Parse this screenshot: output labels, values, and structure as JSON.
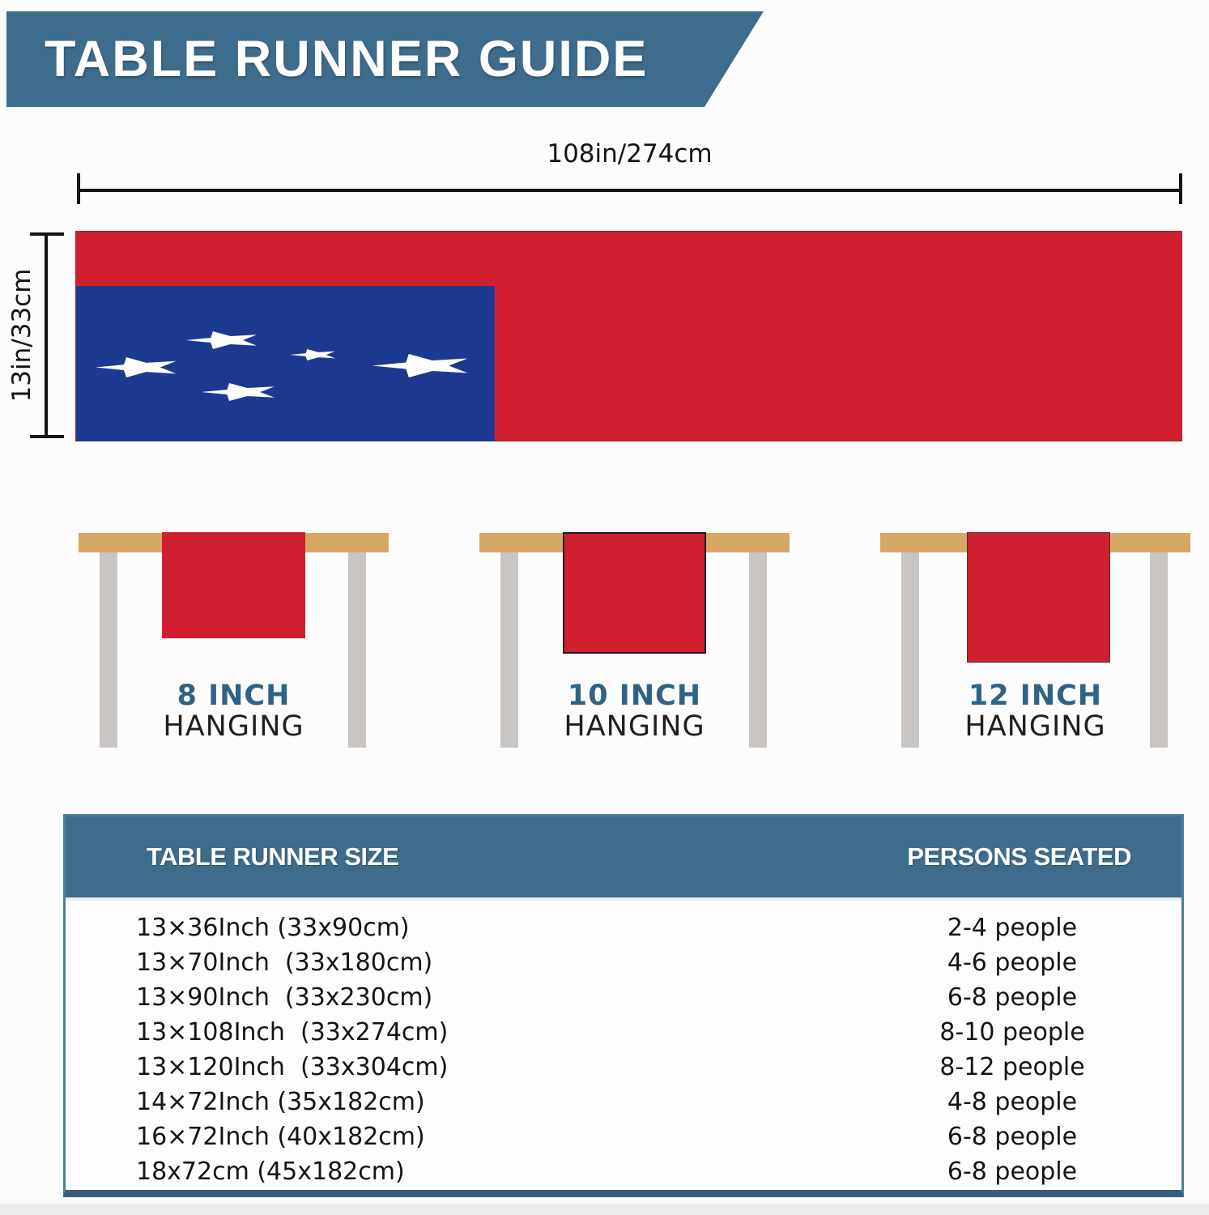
{
  "banner": {
    "title": "TABLE RUNNER GUIDE",
    "color": "#3d6c8c"
  },
  "dimensions": {
    "length": "108in/274cm",
    "width": "13in/33cm"
  },
  "runner": {
    "red": "#d01f2f",
    "blue": "#1c3a90",
    "star_color": "#ffffff",
    "star_count": 5
  },
  "hanging_examples": [
    {
      "inch": "8 INCH",
      "hanging": "HANGING"
    },
    {
      "inch": "10 INCH",
      "hanging": "HANGING"
    },
    {
      "inch": "12 INCH",
      "hanging": "HANGING"
    }
  ],
  "size_table": {
    "columns": [
      "TABLE RUNNER SIZE",
      "PERSONS SEATED"
    ],
    "rows": [
      {
        "size": "13×36Inch (33x90cm)",
        "persons": "2-4 people"
      },
      {
        "size": "13×70Inch  (33x180cm)",
        "persons": "4-6 people"
      },
      {
        "size": "13×90Inch  (33x230cm)",
        "persons": "6-8 people"
      },
      {
        "size": "13×108Inch  (33x274cm)",
        "persons": "8-10 people"
      },
      {
        "size": "13×120Inch  (33x304cm)",
        "persons": "8-12 people"
      },
      {
        "size": "14×72Inch (35x182cm)",
        "persons": "4-8 people"
      },
      {
        "size": "16×72Inch (40x182cm)",
        "persons": "6-8 people"
      },
      {
        "size": "18x72cm (45x182cm)",
        "persons": "6-8 people"
      }
    ]
  }
}
